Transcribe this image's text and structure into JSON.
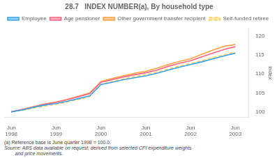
{
  "chart_data": {
    "type": "line",
    "title": "28.7   INDEX NUMBER(a), By household type",
    "y_label": "index",
    "footnotes": [
      "(a) Reference base is June quarter 1998 = 100.0.",
      "Source: ABS data available on request, derived from selected CPI expenditure weights\n        and price movements."
    ],
    "x": [
      1998.458,
      1998.708,
      1998.958,
      1999.208,
      1999.458,
      1999.708,
      1999.958,
      2000.208,
      2000.458,
      2000.708,
      2000.958,
      2001.208,
      2001.458,
      2001.708,
      2001.958,
      2002.208,
      2002.458,
      2002.708,
      2002.958,
      2003.208,
      2003.458
    ],
    "xlim": [
      1998.3,
      2003.75
    ],
    "xticks": [
      {
        "value": 1998.458,
        "label": "Jun\n1998"
      },
      {
        "value": 1999.458,
        "label": "Jun\n1999"
      },
      {
        "value": 2000.458,
        "label": "Jun\n2000"
      },
      {
        "value": 2001.458,
        "label": "Jun\n2001"
      },
      {
        "value": 2002.458,
        "label": "Jun\n2002"
      },
      {
        "value": 2003.458,
        "label": "Jun\n2003"
      }
    ],
    "ylim": [
      98.5,
      122
    ],
    "yticks": [
      100,
      105,
      110,
      115,
      120
    ],
    "grid": false,
    "legend": "top",
    "series": [
      {
        "name": "Employee",
        "values": [
          100.0,
          100.5,
          101.2,
          101.8,
          102.2,
          102.8,
          103.5,
          104.2,
          107.2,
          107.8,
          108.5,
          109.0,
          109.5,
          110.2,
          111.0,
          111.8,
          112.5,
          113.2,
          114.0,
          114.8,
          115.5
        ]
      },
      {
        "name": "Age pensioner",
        "values": [
          100.0,
          100.6,
          101.3,
          102.0,
          102.5,
          103.2,
          104.0,
          104.8,
          107.8,
          108.5,
          109.2,
          109.8,
          110.3,
          111.0,
          112.0,
          112.8,
          113.5,
          114.5,
          115.5,
          116.5,
          117.2
        ]
      },
      {
        "name": "Other government transfer recipient",
        "values": [
          100.0,
          100.6,
          101.4,
          102.1,
          102.6,
          103.3,
          104.1,
          105.0,
          108.0,
          108.8,
          109.5,
          110.2,
          110.7,
          111.5,
          112.5,
          113.3,
          114.0,
          115.2,
          116.3,
          117.3,
          117.8
        ]
      },
      {
        "name": "Self-funded retiree",
        "line_style": "dashed",
        "values": [
          100.0,
          100.4,
          101.0,
          101.5,
          102.0,
          102.6,
          103.3,
          104.0,
          107.3,
          108.0,
          108.7,
          109.3,
          109.8,
          110.5,
          111.3,
          112.1,
          112.8,
          113.5,
          114.3,
          115.1,
          115.8
        ]
      }
    ]
  }
}
